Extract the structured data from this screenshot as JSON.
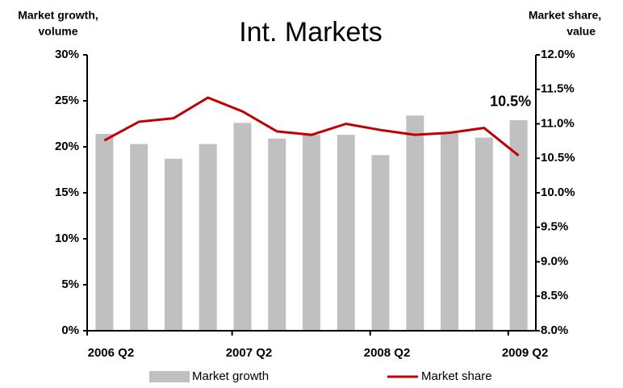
{
  "chart_data": {
    "type": "bar-line",
    "title": "Int. Markets",
    "ylabel": [
      "Market growth,",
      "volume"
    ],
    "y2label": [
      "Market share,",
      "value"
    ],
    "categories": [
      "2006 Q2",
      null,
      null,
      null,
      "2007 Q2",
      null,
      null,
      null,
      "2008 Q2",
      null,
      null,
      null,
      "2009 Q2"
    ],
    "series": [
      {
        "name": "Market growth",
        "type": "bar",
        "color": "#c0c0c0",
        "values": [
          21.4,
          20.3,
          18.7,
          20.3,
          22.6,
          20.9,
          21.3,
          21.3,
          19.1,
          23.4,
          21.5,
          21.0,
          22.9
        ]
      },
      {
        "name": "Market share",
        "type": "line",
        "axis": "y2",
        "color": "#c00000",
        "values": [
          10.76,
          11.03,
          11.08,
          11.38,
          11.18,
          10.89,
          10.84,
          11.0,
          10.91,
          10.84,
          10.87,
          10.94,
          10.54
        ],
        "value_labels": [
          null,
          null,
          null,
          null,
          null,
          null,
          null,
          null,
          null,
          null,
          null,
          null,
          "10.5%"
        ]
      }
    ],
    "ylim": [
      0,
      30
    ],
    "yticks": [
      {
        "value": 0,
        "label": "0%"
      },
      {
        "value": 5,
        "label": "5%"
      },
      {
        "value": 10,
        "label": "10%"
      },
      {
        "value": 15,
        "label": "15%"
      },
      {
        "value": 20,
        "label": "20%"
      },
      {
        "value": 25,
        "label": "25%"
      },
      {
        "value": 30,
        "label": "30%"
      }
    ],
    "y2lim": [
      8,
      12
    ],
    "y2ticks": [
      {
        "value": 8,
        "label": "8.0%"
      },
      {
        "value": 8.5,
        "label": "8.5%"
      },
      {
        "value": 9,
        "label": "9.0%"
      },
      {
        "value": 9.5,
        "label": "9.5%"
      },
      {
        "value": 10,
        "label": "10.0%"
      },
      {
        "value": 10.5,
        "label": "10.5%"
      },
      {
        "value": 11,
        "label": "11.0%"
      },
      {
        "value": 11.5,
        "label": "11.5%"
      },
      {
        "value": 12,
        "label": "12.0%"
      }
    ],
    "legend": "bottom"
  }
}
